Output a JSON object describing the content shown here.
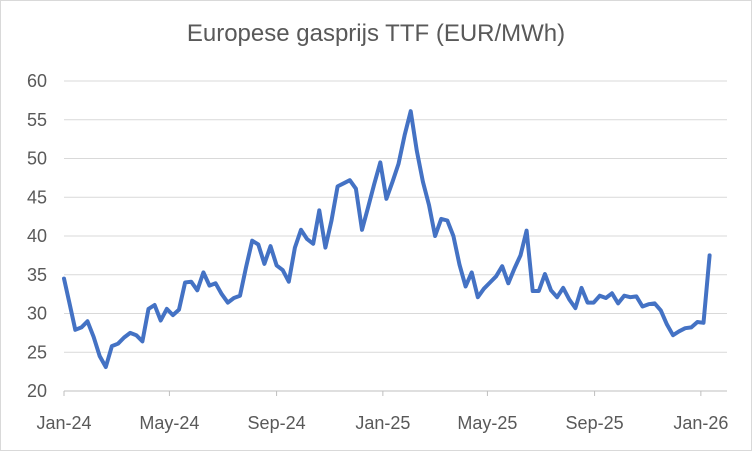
{
  "chart_data": {
    "type": "line",
    "title": "Europese gasprijs TTF (EUR/MWh)",
    "xlabel": "",
    "ylabel": "",
    "ylim": [
      20,
      60
    ],
    "yticks": [
      20,
      25,
      30,
      35,
      40,
      45,
      50,
      55,
      60
    ],
    "xlim": [
      "2024-01-01",
      "2026-01-31"
    ],
    "xticks": [
      {
        "date": "2024-01-01",
        "label": "Jan-24"
      },
      {
        "date": "2024-05-01",
        "label": "May-24"
      },
      {
        "date": "2024-09-01",
        "label": "Sep-24"
      },
      {
        "date": "2025-01-01",
        "label": "Jan-25"
      },
      {
        "date": "2025-05-01",
        "label": "May-25"
      },
      {
        "date": "2025-09-01",
        "label": "Sep-25"
      },
      {
        "date": "2026-01-01",
        "label": "Jan-26"
      }
    ],
    "grid": "horizontal",
    "legend": "none",
    "colors": {
      "line": "#4472c4",
      "grid": "#d9d9d9",
      "axis": "#bfbfbf",
      "text": "#595959"
    },
    "series": [
      {
        "points": [
          [
            "2024-01-01",
            34.5
          ],
          [
            "2024-01-07",
            31.5
          ],
          [
            "2024-01-14",
            27.9
          ],
          [
            "2024-01-21",
            28.2
          ],
          [
            "2024-01-28",
            29.0
          ],
          [
            "2024-02-04",
            27.0
          ],
          [
            "2024-02-11",
            24.5
          ],
          [
            "2024-02-18",
            23.1
          ],
          [
            "2024-02-25",
            25.8
          ],
          [
            "2024-03-03",
            26.1
          ],
          [
            "2024-03-10",
            26.9
          ],
          [
            "2024-03-17",
            27.5
          ],
          [
            "2024-03-24",
            27.2
          ],
          [
            "2024-03-31",
            26.4
          ],
          [
            "2024-04-07",
            30.6
          ],
          [
            "2024-04-14",
            31.1
          ],
          [
            "2024-04-21",
            29.1
          ],
          [
            "2024-04-28",
            30.6
          ],
          [
            "2024-05-05",
            29.8
          ],
          [
            "2024-05-12",
            30.5
          ],
          [
            "2024-05-19",
            34.0
          ],
          [
            "2024-05-26",
            34.1
          ],
          [
            "2024-06-02",
            33.0
          ],
          [
            "2024-06-09",
            35.3
          ],
          [
            "2024-06-16",
            33.6
          ],
          [
            "2024-06-23",
            33.9
          ],
          [
            "2024-06-30",
            32.5
          ],
          [
            "2024-07-07",
            31.4
          ],
          [
            "2024-07-14",
            32.0
          ],
          [
            "2024-07-21",
            32.3
          ],
          [
            "2024-07-28",
            36.0
          ],
          [
            "2024-08-04",
            39.4
          ],
          [
            "2024-08-11",
            38.9
          ],
          [
            "2024-08-18",
            36.4
          ],
          [
            "2024-08-25",
            38.7
          ],
          [
            "2024-09-01",
            36.2
          ],
          [
            "2024-09-08",
            35.6
          ],
          [
            "2024-09-15",
            34.1
          ],
          [
            "2024-09-22",
            38.5
          ],
          [
            "2024-09-29",
            40.8
          ],
          [
            "2024-10-06",
            39.6
          ],
          [
            "2024-10-13",
            39.0
          ],
          [
            "2024-10-20",
            43.3
          ],
          [
            "2024-10-27",
            38.5
          ],
          [
            "2024-11-03",
            42.0
          ],
          [
            "2024-11-10",
            46.4
          ],
          [
            "2024-11-17",
            46.8
          ],
          [
            "2024-11-24",
            47.2
          ],
          [
            "2024-12-01",
            46.1
          ],
          [
            "2024-12-08",
            40.8
          ],
          [
            "2024-12-15",
            43.7
          ],
          [
            "2024-12-22",
            46.7
          ],
          [
            "2024-12-29",
            49.5
          ],
          [
            "2025-01-05",
            44.8
          ],
          [
            "2025-01-12",
            47.0
          ],
          [
            "2025-01-19",
            49.3
          ],
          [
            "2025-01-26",
            53.0
          ],
          [
            "2025-02-02",
            56.1
          ],
          [
            "2025-02-09",
            51.0
          ],
          [
            "2025-02-16",
            47.0
          ],
          [
            "2025-02-23",
            44.0
          ],
          [
            "2025-03-02",
            40.0
          ],
          [
            "2025-03-09",
            42.2
          ],
          [
            "2025-03-16",
            42.0
          ],
          [
            "2025-03-23",
            40.0
          ],
          [
            "2025-03-30",
            36.3
          ],
          [
            "2025-04-06",
            33.5
          ],
          [
            "2025-04-13",
            35.3
          ],
          [
            "2025-04-20",
            32.1
          ],
          [
            "2025-04-27",
            33.2
          ],
          [
            "2025-05-04",
            34.0
          ],
          [
            "2025-05-11",
            34.8
          ],
          [
            "2025-05-18",
            36.1
          ],
          [
            "2025-05-25",
            33.9
          ],
          [
            "2025-06-01",
            35.8
          ],
          [
            "2025-06-08",
            37.5
          ],
          [
            "2025-06-15",
            40.7
          ],
          [
            "2025-06-22",
            32.9
          ],
          [
            "2025-06-29",
            32.9
          ],
          [
            "2025-07-06",
            35.1
          ],
          [
            "2025-07-13",
            33.0
          ],
          [
            "2025-07-20",
            32.1
          ],
          [
            "2025-07-27",
            33.3
          ],
          [
            "2025-08-03",
            31.8
          ],
          [
            "2025-08-10",
            30.7
          ],
          [
            "2025-08-17",
            33.3
          ],
          [
            "2025-08-24",
            31.4
          ],
          [
            "2025-08-31",
            31.4
          ],
          [
            "2025-09-07",
            32.3
          ],
          [
            "2025-09-14",
            32.0
          ],
          [
            "2025-09-21",
            32.6
          ],
          [
            "2025-09-28",
            31.3
          ],
          [
            "2025-10-05",
            32.3
          ],
          [
            "2025-10-12",
            32.1
          ],
          [
            "2025-10-19",
            32.2
          ],
          [
            "2025-10-26",
            30.9
          ],
          [
            "2025-11-02",
            31.2
          ],
          [
            "2025-11-09",
            31.3
          ],
          [
            "2025-11-16",
            30.4
          ],
          [
            "2025-11-23",
            28.6
          ],
          [
            "2025-11-30",
            27.2
          ],
          [
            "2025-12-07",
            27.7
          ],
          [
            "2025-12-14",
            28.1
          ],
          [
            "2025-12-21",
            28.2
          ],
          [
            "2025-12-28",
            28.9
          ],
          [
            "2026-01-04",
            28.8
          ],
          [
            "2026-01-11",
            37.5
          ]
        ]
      }
    ]
  }
}
